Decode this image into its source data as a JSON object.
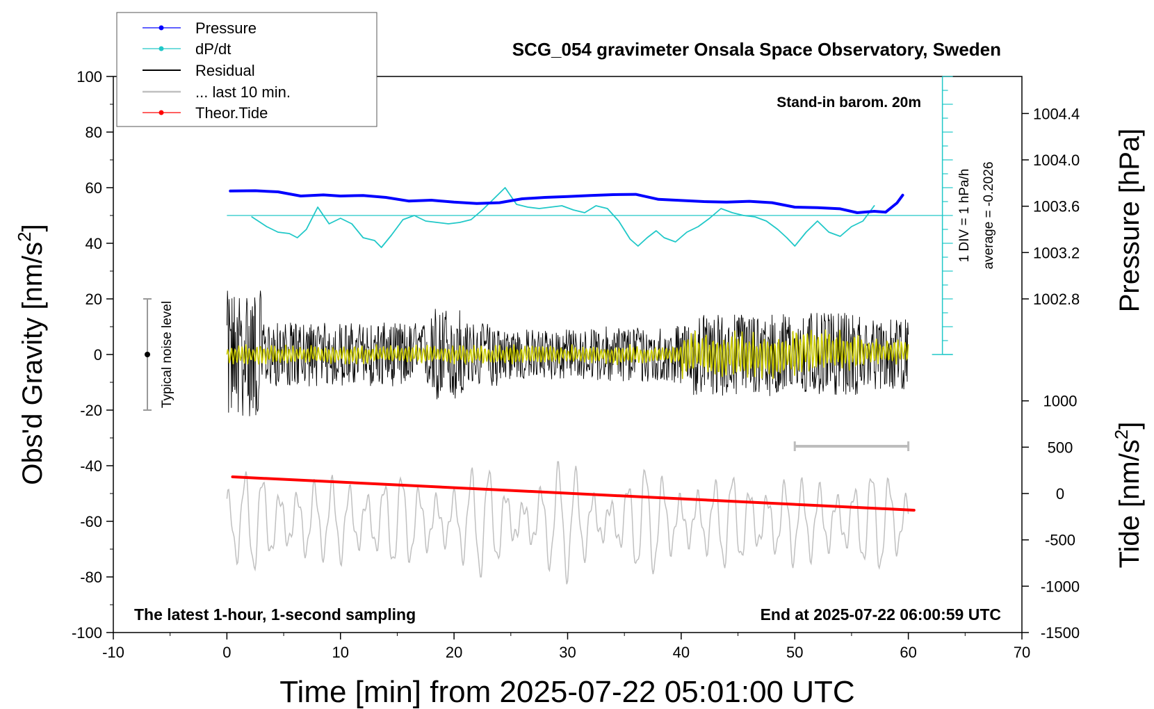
{
  "chart_data": {
    "type": "line",
    "title": "SCG_054 gravimeter Onsala Space Observatory, Sweden",
    "subtitle": "Stand-in barom. 20m",
    "footer_left": "The latest 1-hour, 1-second sampling",
    "footer_right": "End at 2025-07-22 06:00:59 UTC",
    "xlabel": "Time [min] from 2025-07-22 05:01:00 UTC",
    "ylabel": "Obs'd Gravity [nm/s",
    "ylabel_sup": "2",
    "ylabel_end": "]",
    "y2label": "Pressure [hPa]",
    "y3label": "Tide [nm/s",
    "y3label_sup": "2",
    "y3label_end": "]",
    "xlim": [
      -10,
      70
    ],
    "ylim": [
      -100,
      100
    ],
    "x_ticks": [
      -10,
      0,
      10,
      20,
      30,
      40,
      50,
      60,
      70
    ],
    "y_ticks": [
      -100,
      -80,
      -60,
      -40,
      -20,
      0,
      20,
      40,
      60,
      80,
      100
    ],
    "pressure_axis": {
      "ticks": [
        "1002.8",
        "1003.2",
        "1003.6",
        "1004.0",
        "1004.4"
      ],
      "at_gravity": [
        20,
        36.67,
        53.33,
        70,
        86.67
      ]
    },
    "tide_axis": {
      "ticks": [
        "-1500",
        "-1000",
        "-500",
        "0",
        "500",
        "1000"
      ],
      "at_gravity": [
        -100,
        -83.33,
        -66.67,
        -50,
        -33.33,
        -16.67
      ]
    },
    "dpdt_scale": {
      "label": "1 DIV = 1 hPa/h",
      "average": "average = -0.2026"
    },
    "noise_label": "Typical noise level",
    "noise_bar": {
      "x": -7,
      "y_low": -20,
      "y_high": 20
    },
    "scale_bar": {
      "x_start": 50,
      "x_end": 60,
      "y": -33
    },
    "legend": [
      {
        "label": "Pressure",
        "color": "#0000ff",
        "marker": true
      },
      {
        "label": "dP/dt",
        "color": "#20c8c8",
        "marker": true
      },
      {
        "label": "Residual",
        "color": "#000000",
        "marker": false
      },
      {
        "label": "... last 10 min.",
        "color": "#bfbfbf",
        "marker": false
      },
      {
        "label": "Theor.Tide",
        "color": "#ff0000",
        "marker": true
      }
    ],
    "colors": {
      "pressure": "#0000ff",
      "dpdt": "#20c8c8",
      "residual": "#000000",
      "residual_smooth": "#cccc00",
      "last10": "#c0c0c0",
      "tide": "#ff0000"
    },
    "series": [
      {
        "name": "Pressure",
        "x": [
          0.3,
          2.5,
          4.5,
          6.5,
          8.5,
          10,
          12,
          14,
          16,
          18,
          20,
          22,
          24,
          26,
          28,
          30,
          32,
          34,
          36,
          38,
          40,
          42,
          44,
          46,
          48,
          50,
          52,
          54,
          55.5,
          57,
          58,
          59,
          59.5
        ],
        "values": [
          58.8,
          58.9,
          58.5,
          57.0,
          57.4,
          57.0,
          57.2,
          56.5,
          55.2,
          55.5,
          54.8,
          54.3,
          54.6,
          56.0,
          56.5,
          56.8,
          57.2,
          57.5,
          57.6,
          55.8,
          55.4,
          55.0,
          54.8,
          55.1,
          54.6,
          53.0,
          52.8,
          52.4,
          51.0,
          51.5,
          51.2,
          54.5,
          57.3
        ]
      },
      {
        "name": "dP/dt",
        "x": [
          2.2,
          3.5,
          4.5,
          5.5,
          6.2,
          7,
          8,
          9,
          10,
          11,
          12,
          13,
          13.6,
          14.5,
          15.5,
          16.5,
          17.5,
          18.5,
          19.5,
          20.5,
          21.5,
          22.5,
          23.5,
          24.5,
          25.5,
          26.5,
          27.5,
          28.5,
          29.5,
          30.5,
          31.5,
          32.5,
          33.5,
          34.5,
          35.5,
          36.2,
          37,
          37.8,
          38.5,
          39.5,
          40.5,
          41.5,
          42.5,
          43.5,
          44.5,
          45.5,
          46.5,
          47.5,
          48.5,
          49.3,
          50,
          51,
          52,
          53,
          54,
          55,
          56,
          57
        ],
        "values": [
          49.5,
          46,
          44,
          43.5,
          42,
          45,
          53,
          47,
          49,
          47,
          42,
          41,
          38.5,
          43,
          48.5,
          50,
          48,
          47.5,
          47,
          47.5,
          48.5,
          52,
          56,
          60,
          54,
          53,
          52.5,
          53,
          53.5,
          52,
          51,
          53.5,
          52.5,
          48,
          41.5,
          39,
          42,
          44.5,
          42,
          40.5,
          44,
          46,
          49,
          52.5,
          51,
          50,
          49.5,
          48,
          45,
          42,
          39,
          44,
          48,
          44,
          42.5,
          46,
          48,
          53.5
        ]
      },
      {
        "name": "Theor.Tide",
        "x": [
          0.5,
          60.5
        ],
        "values": [
          -44,
          -56
        ]
      }
    ]
  }
}
